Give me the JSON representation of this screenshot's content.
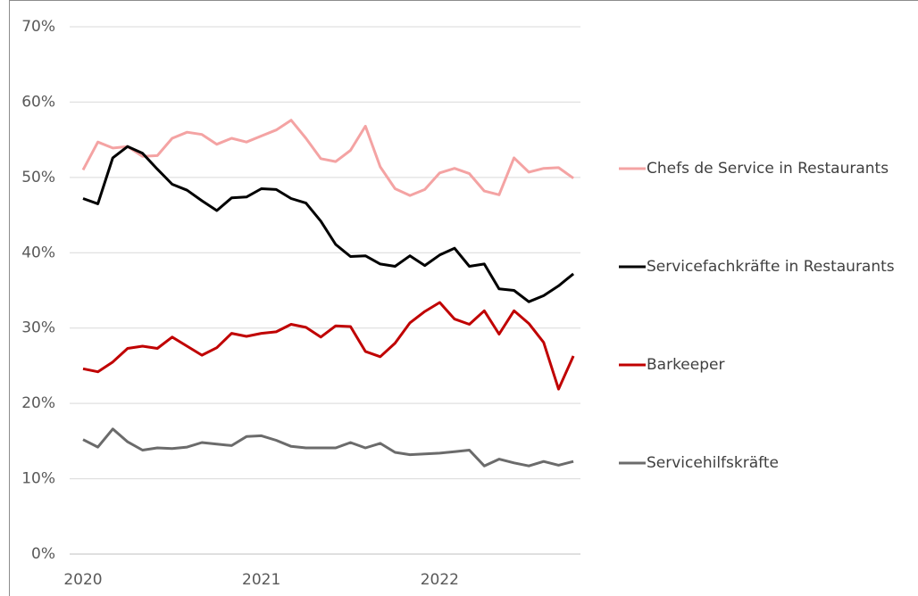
{
  "chart_data": {
    "type": "line",
    "categories": [
      "2020",
      null,
      null,
      null,
      null,
      null,
      null,
      null,
      null,
      null,
      null,
      null,
      "2021",
      null,
      null,
      null,
      null,
      null,
      null,
      null,
      null,
      null,
      null,
      null,
      "2022",
      null,
      null,
      null,
      null,
      null,
      null,
      null,
      null,
      null
    ],
    "series": [
      {
        "name": "Chefs de Service in Restaurants",
        "color": "#f4a3a3",
        "values": [
          51,
          54.7,
          53.9,
          54.1,
          52.8,
          52.9,
          55.2,
          56.0,
          55.7,
          54.4,
          55.2,
          54.7,
          55.5,
          56.3,
          57.6,
          55.2,
          52.5,
          52.1,
          53.6,
          56.8,
          51.4,
          48.5,
          47.6,
          48.4,
          50.6,
          51.2,
          50.5,
          48.2,
          47.7,
          52.6,
          50.7,
          51.2,
          51.3,
          49.9
        ]
      },
      {
        "name": "Servicefachkräfte in Restaurants",
        "color": "#000000",
        "values": [
          47.2,
          46.5,
          52.6,
          54.1,
          53.2,
          51.1,
          49.1,
          48.3,
          46.9,
          45.6,
          47.3,
          47.4,
          48.5,
          48.4,
          47.2,
          46.6,
          44.2,
          41.1,
          39.5,
          39.6,
          38.5,
          38.2,
          39.6,
          38.3,
          39.7,
          40.6,
          38.2,
          38.5,
          35.2,
          35.0,
          33.5,
          34.3,
          35.6,
          37.2
        ]
      },
      {
        "name": "Barkeeper",
        "color": "#c00000",
        "values": [
          24.6,
          24.2,
          25.5,
          27.3,
          27.6,
          27.3,
          28.8,
          27.6,
          26.4,
          27.4,
          29.3,
          28.9,
          29.3,
          29.5,
          30.5,
          30.1,
          28.8,
          30.3,
          30.2,
          26.9,
          26.2,
          28.0,
          30.7,
          32.2,
          33.4,
          31.2,
          30.5,
          32.3,
          29.2,
          32.3,
          30.6,
          28.1,
          21.9,
          26.3
        ]
      },
      {
        "name": "Servicehilfskräfte",
        "color": "#6b6b6b",
        "values": [
          15.2,
          14.2,
          16.6,
          14.9,
          13.8,
          14.1,
          14.0,
          14.2,
          14.8,
          14.6,
          14.4,
          15.6,
          15.7,
          15.1,
          14.3,
          14.1,
          14.1,
          14.1,
          14.8,
          14.1,
          14.7,
          13.5,
          13.2,
          13.3,
          13.4,
          13.6,
          13.8,
          11.7,
          12.6,
          12.1,
          11.7,
          12.3,
          11.8,
          12.3
        ]
      }
    ],
    "ylim": [
      0,
      70
    ],
    "yticks": [
      {
        "value": 0,
        "label": "0%"
      },
      {
        "value": 10,
        "label": "10%"
      },
      {
        "value": 20,
        "label": "20%"
      },
      {
        "value": 30,
        "label": "30%"
      },
      {
        "value": 40,
        "label": "40%"
      },
      {
        "value": 50,
        "label": "50%"
      },
      {
        "value": 60,
        "label": "60%"
      },
      {
        "value": 70,
        "label": "70%"
      }
    ],
    "grid": true,
    "legend": "right"
  }
}
